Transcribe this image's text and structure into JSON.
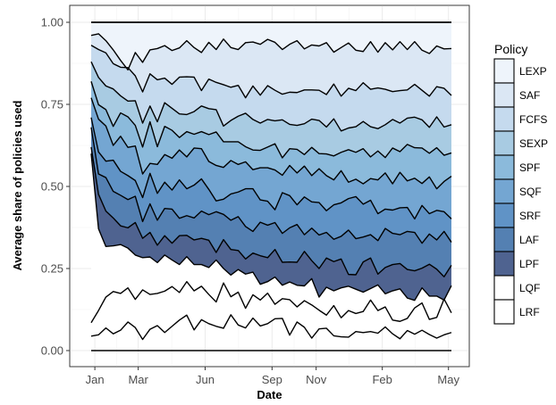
{
  "chart_data": {
    "type": "area",
    "xlabel": "Date",
    "ylabel": "Average share of policies used",
    "ylim": [
      0,
      1
    ],
    "yticks": [
      "0.00",
      "0.25",
      "0.50",
      "0.75",
      "1.00"
    ],
    "xticks": [
      {
        "label": "Jan",
        "date": "2019-01-01"
      },
      {
        "label": "Mar",
        "date": "2019-03-01"
      },
      {
        "label": "Jun",
        "date": "2019-05-31"
      },
      {
        "label": "Sep",
        "date": "2019-08-30"
      },
      {
        "label": "Nov",
        "date": "2019-10-29"
      },
      {
        "label": "Feb",
        "date": "2020-01-27"
      },
      {
        "label": "May",
        "date": "2020-04-26"
      }
    ],
    "x_dates": [
      "2018-12-27",
      "2019-01-06",
      "2019-01-16",
      "2019-01-26",
      "2019-02-05",
      "2019-02-15",
      "2019-02-25",
      "2019-03-07",
      "2019-03-17",
      "2019-03-27",
      "2019-04-06",
      "2019-04-16",
      "2019-04-26",
      "2019-05-06",
      "2019-05-16",
      "2019-05-26",
      "2019-06-05",
      "2019-06-15",
      "2019-06-25",
      "2019-07-05",
      "2019-07-15",
      "2019-07-25",
      "2019-08-04",
      "2019-08-14",
      "2019-08-24",
      "2019-09-03",
      "2019-09-13",
      "2019-09-23",
      "2019-10-03",
      "2019-10-13",
      "2019-10-23",
      "2019-11-02",
      "2019-11-12",
      "2019-11-22",
      "2019-12-02",
      "2019-12-12",
      "2019-12-22",
      "2020-01-01",
      "2020-01-11",
      "2020-01-21",
      "2020-01-31",
      "2020-02-10",
      "2020-02-20",
      "2020-03-01",
      "2020-03-11",
      "2020-03-21",
      "2020-03-31",
      "2020-04-10",
      "2020-04-20",
      "2020-04-30"
    ],
    "stack_order_bottom_to_top": [
      "LRF",
      "LQF",
      "LPF",
      "LAF",
      "SRF",
      "SQF",
      "SPF",
      "SEXP",
      "FCFS",
      "SAF",
      "LEXP"
    ],
    "boundaries": [
      [
        0.044,
        0.048,
        0.069,
        0.051,
        0.062,
        0.087,
        0.07,
        0.034,
        0.065,
        0.076,
        0.055,
        0.074,
        0.093,
        0.108,
        0.063,
        0.094,
        0.082,
        0.074,
        0.068,
        0.109,
        0.078,
        0.069,
        0.099,
        0.075,
        0.082,
        0.097,
        0.098,
        0.047,
        0.087,
        0.071,
        0.038,
        0.066,
        0.068,
        0.045,
        0.042,
        0.041,
        0.058,
        0.055,
        0.058,
        0.053,
        0.072,
        0.051,
        0.036,
        0.061,
        0.05,
        0.062,
        0.049,
        0.038,
        0.048,
        0.055
      ],
      [
        0.085,
        0.122,
        0.163,
        0.18,
        0.174,
        0.191,
        0.156,
        0.185,
        0.171,
        0.174,
        0.181,
        0.195,
        0.177,
        0.21,
        0.182,
        0.196,
        0.171,
        0.148,
        0.206,
        0.164,
        0.178,
        0.129,
        0.17,
        0.154,
        0.175,
        0.141,
        0.158,
        0.155,
        0.133,
        0.152,
        0.139,
        0.123,
        0.108,
        0.137,
        0.1,
        0.122,
        0.113,
        0.119,
        0.154,
        0.122,
        0.133,
        0.093,
        0.089,
        0.098,
        0.13,
        0.145,
        0.095,
        0.101,
        0.157,
        0.115
      ],
      [
        0.6,
        0.371,
        0.317,
        0.319,
        0.323,
        0.312,
        0.291,
        0.283,
        0.285,
        0.268,
        0.291,
        0.276,
        0.262,
        0.286,
        0.262,
        0.262,
        0.253,
        0.276,
        0.25,
        0.23,
        0.247,
        0.233,
        0.239,
        0.202,
        0.21,
        0.224,
        0.199,
        0.209,
        0.199,
        0.197,
        0.219,
        0.163,
        0.193,
        0.182,
        0.191,
        0.196,
        0.187,
        0.178,
        0.189,
        0.2,
        0.173,
        0.182,
        0.188,
        0.16,
        0.153,
        0.191,
        0.166,
        0.166,
        0.154,
        0.198
      ],
      [
        0.62,
        0.476,
        0.425,
        0.404,
        0.38,
        0.374,
        0.39,
        0.342,
        0.36,
        0.321,
        0.35,
        0.327,
        0.35,
        0.351,
        0.337,
        0.342,
        0.336,
        0.299,
        0.338,
        0.308,
        0.305,
        0.279,
        0.297,
        0.289,
        0.283,
        0.308,
        0.269,
        0.27,
        0.269,
        0.302,
        0.274,
        0.25,
        0.282,
        0.271,
        0.279,
        0.232,
        0.231,
        0.27,
        0.282,
        0.233,
        0.253,
        0.262,
        0.265,
        0.247,
        0.243,
        0.251,
        0.263,
        0.248,
        0.225,
        0.26
      ],
      [
        0.68,
        0.538,
        0.527,
        0.485,
        0.473,
        0.46,
        0.47,
        0.393,
        0.447,
        0.397,
        0.433,
        0.431,
        0.403,
        0.411,
        0.404,
        0.425,
        0.414,
        0.423,
        0.415,
        0.397,
        0.408,
        0.378,
        0.363,
        0.391,
        0.382,
        0.39,
        0.357,
        0.374,
        0.384,
        0.353,
        0.373,
        0.352,
        0.36,
        0.339,
        0.348,
        0.367,
        0.341,
        0.346,
        0.353,
        0.335,
        0.372,
        0.357,
        0.353,
        0.363,
        0.36,
        0.327,
        0.355,
        0.337,
        0.363,
        0.33
      ],
      [
        0.71,
        0.605,
        0.577,
        0.58,
        0.546,
        0.533,
        0.518,
        0.466,
        0.54,
        0.479,
        0.513,
        0.489,
        0.52,
        0.493,
        0.504,
        0.523,
        0.491,
        0.456,
        0.461,
        0.477,
        0.483,
        0.493,
        0.493,
        0.459,
        0.455,
        0.429,
        0.481,
        0.472,
        0.444,
        0.468,
        0.453,
        0.451,
        0.426,
        0.444,
        0.45,
        0.463,
        0.469,
        0.446,
        0.458,
        0.417,
        0.431,
        0.428,
        0.435,
        0.436,
        0.401,
        0.442,
        0.417,
        0.427,
        0.423,
        0.401
      ],
      [
        0.77,
        0.705,
        0.684,
        0.625,
        0.653,
        0.619,
        0.623,
        0.538,
        0.57,
        0.567,
        0.597,
        0.586,
        0.611,
        0.59,
        0.617,
        0.615,
        0.576,
        0.564,
        0.558,
        0.579,
        0.567,
        0.575,
        0.551,
        0.557,
        0.557,
        0.55,
        0.534,
        0.564,
        0.541,
        0.562,
        0.533,
        0.554,
        0.533,
        0.52,
        0.548,
        0.513,
        0.522,
        0.508,
        0.524,
        0.52,
        0.541,
        0.508,
        0.543,
        0.517,
        0.525,
        0.509,
        0.529,
        0.493,
        0.515,
        0.531
      ],
      [
        0.82,
        0.749,
        0.734,
        0.683,
        0.724,
        0.712,
        0.686,
        0.62,
        0.697,
        0.621,
        0.683,
        0.671,
        0.649,
        0.667,
        0.659,
        0.667,
        0.658,
        0.666,
        0.636,
        0.636,
        0.636,
        0.621,
        0.611,
        0.61,
        0.62,
        0.63,
        0.587,
        0.615,
        0.613,
        0.597,
        0.619,
        0.6,
        0.599,
        0.593,
        0.604,
        0.612,
        0.604,
        0.615,
        0.59,
        0.608,
        0.588,
        0.617,
        0.606,
        0.628,
        0.618,
        0.617,
        0.601,
        0.618,
        0.595,
        0.602
      ],
      [
        0.88,
        0.832,
        0.806,
        0.797,
        0.776,
        0.76,
        0.761,
        0.693,
        0.745,
        0.697,
        0.755,
        0.738,
        0.721,
        0.719,
        0.728,
        0.745,
        0.737,
        0.734,
        0.684,
        0.701,
        0.714,
        0.723,
        0.704,
        0.693,
        0.704,
        0.7,
        0.703,
        0.689,
        0.686,
        0.691,
        0.705,
        0.701,
        0.681,
        0.706,
        0.669,
        0.678,
        0.682,
        0.698,
        0.682,
        0.676,
        0.688,
        0.704,
        0.693,
        0.708,
        0.711,
        0.703,
        0.68,
        0.712,
        0.681,
        0.688
      ],
      [
        0.93,
        0.917,
        0.907,
        0.874,
        0.863,
        0.862,
        0.837,
        0.788,
        0.843,
        0.825,
        0.83,
        0.811,
        0.833,
        0.834,
        0.833,
        0.792,
        0.827,
        0.817,
        0.81,
        0.802,
        0.808,
        0.77,
        0.806,
        0.778,
        0.807,
        0.793,
        0.781,
        0.787,
        0.786,
        0.794,
        0.794,
        0.793,
        0.78,
        0.812,
        0.775,
        0.799,
        0.792,
        0.816,
        0.796,
        0.8,
        0.796,
        0.789,
        0.792,
        0.794,
        0.811,
        0.793,
        0.775,
        0.804,
        0.799,
        0.777
      ],
      [
        0.96,
        0.965,
        0.944,
        0.916,
        0.884,
        0.855,
        0.908,
        0.878,
        0.916,
        0.92,
        0.929,
        0.914,
        0.922,
        0.944,
        0.923,
        0.908,
        0.939,
        0.917,
        0.949,
        0.923,
        0.917,
        0.938,
        0.94,
        0.933,
        0.948,
        0.939,
        0.917,
        0.933,
        0.944,
        0.919,
        0.931,
        0.928,
        0.938,
        0.909,
        0.923,
        0.937,
        0.915,
        0.911,
        0.941,
        0.909,
        0.938,
        0.916,
        0.941,
        0.917,
        0.941,
        0.915,
        0.905,
        0.928,
        0.919,
        0.92
      ],
      [
        1,
        1,
        1,
        1,
        1,
        1,
        1,
        1,
        1,
        1,
        1,
        1,
        1,
        1,
        1,
        1,
        1,
        1,
        1,
        1,
        1,
        1,
        1,
        1,
        1,
        1,
        1,
        1,
        1,
        1,
        1,
        1,
        1,
        1,
        1,
        1,
        1,
        1,
        1,
        1,
        1,
        1,
        1,
        1,
        1,
        1,
        1,
        1,
        1,
        1
      ]
    ],
    "series": [
      {
        "name": "LRF",
        "color": "#ffffff"
      },
      {
        "name": "LQF",
        "color": "#ffffff"
      },
      {
        "name": "LPF",
        "color": "#4f6390"
      },
      {
        "name": "LAF",
        "color": "#5480b2"
      },
      {
        "name": "SRF",
        "color": "#6093c6"
      },
      {
        "name": "SQF",
        "color": "#74a6d2"
      },
      {
        "name": "SPF",
        "color": "#8bbadb"
      },
      {
        "name": "SEXP",
        "color": "#a8cbe2"
      },
      {
        "name": "FCFS",
        "color": "#c5daee"
      },
      {
        "name": "SAF",
        "color": "#dbe7f4"
      },
      {
        "name": "LEXP",
        "color": "#eef4fb"
      }
    ],
    "legend": {
      "title": "Policy",
      "placement": "right",
      "entries": [
        "LEXP",
        "SAF",
        "FCFS",
        "SEXP",
        "SPF",
        "SQF",
        "SRF",
        "LAF",
        "LPF",
        "LQF",
        "LRF"
      ]
    },
    "grid": true,
    "panel_background": "#ebebeb"
  }
}
